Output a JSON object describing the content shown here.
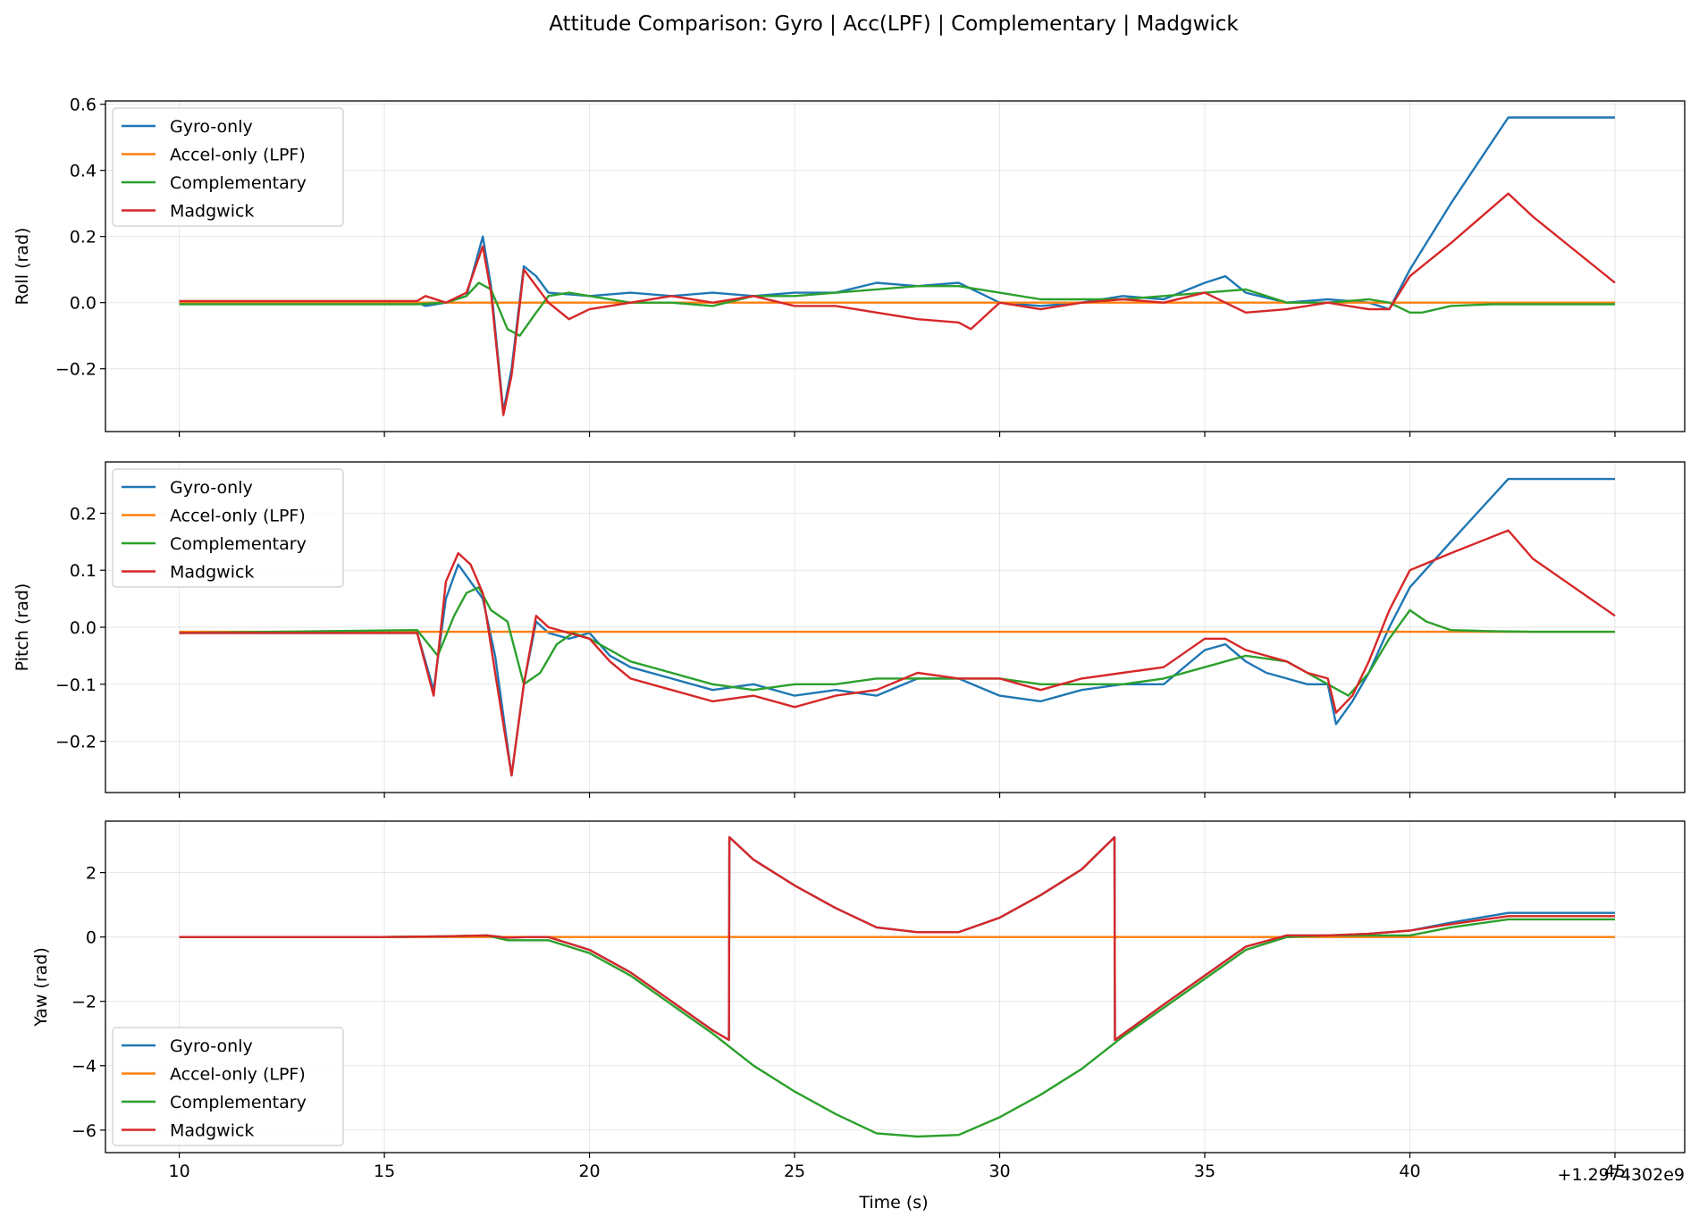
{
  "figure": {
    "title": "Attitude Comparison: Gyro | Acc(LPF) | Complementary | Madgwick",
    "xlabel": "Time (s)",
    "offset_label": "+1.2974302e9"
  },
  "chart_data": [
    {
      "type": "line",
      "ylabel": "Roll (rad)",
      "xlim": [
        8.2,
        46.7
      ],
      "ylim": [
        -0.39,
        0.61
      ],
      "xticks": [
        10,
        15,
        20,
        25,
        30,
        35,
        40,
        45
      ],
      "yticks": [
        -0.2,
        0.0,
        0.2,
        0.4,
        0.6
      ],
      "ytick_labels": [
        "−0.2",
        "0.0",
        "0.2",
        "0.4",
        "0.6"
      ],
      "grid": true,
      "legend": "upper left",
      "series": [
        {
          "name": "Gyro-only",
          "color": "#1f77b4",
          "x": [
            10,
            15.8,
            16,
            16.5,
            17,
            17.4,
            17.6,
            17.9,
            18.1,
            18.4,
            18.7,
            19,
            20,
            21,
            22,
            23,
            24,
            25,
            26,
            27,
            28,
            29,
            29.5,
            30,
            31,
            32,
            33,
            34,
            35,
            35.5,
            36,
            37,
            38,
            39,
            39.5,
            40,
            41,
            42.4,
            43,
            44,
            45
          ],
          "y": [
            0.0,
            0.0,
            -0.01,
            0.0,
            0.02,
            0.2,
            0.05,
            -0.33,
            -0.2,
            0.11,
            0.08,
            0.03,
            0.02,
            0.03,
            0.02,
            0.03,
            0.02,
            0.03,
            0.03,
            0.06,
            0.05,
            0.06,
            0.03,
            0.0,
            -0.01,
            0.0,
            0.02,
            0.01,
            0.06,
            0.08,
            0.03,
            0.0,
            0.01,
            0.0,
            -0.02,
            0.1,
            0.3,
            0.56,
            0.56,
            0.56,
            0.56
          ]
        },
        {
          "name": "Accel-only (LPF)",
          "color": "#ff7f0e",
          "x": [
            10,
            15,
            20,
            25,
            30,
            35,
            40,
            45
          ],
          "y": [
            0.0,
            0.0,
            0.0,
            0.0,
            0.0,
            0.0,
            0.0,
            0.0
          ]
        },
        {
          "name": "Complementary",
          "color": "#2ca02c",
          "x": [
            10,
            15.8,
            16.5,
            17,
            17.3,
            17.6,
            18,
            18.3,
            18.7,
            19,
            19.5,
            20,
            21,
            22,
            23,
            24,
            25,
            26,
            27,
            28,
            29,
            30,
            31,
            32,
            33,
            34,
            35,
            36,
            37,
            38,
            39,
            39.5,
            40,
            40.3,
            41,
            42,
            43,
            44,
            45
          ],
          "y": [
            -0.005,
            -0.005,
            0.0,
            0.02,
            0.06,
            0.04,
            -0.08,
            -0.1,
            -0.03,
            0.02,
            0.03,
            0.02,
            0.0,
            0.0,
            -0.01,
            0.02,
            0.02,
            0.03,
            0.04,
            0.05,
            0.05,
            0.03,
            0.01,
            0.01,
            0.01,
            0.02,
            0.03,
            0.04,
            0.0,
            0.0,
            0.01,
            0.0,
            -0.03,
            -0.03,
            -0.01,
            -0.005,
            -0.005,
            -0.005,
            -0.005
          ]
        },
        {
          "name": "Madgwick",
          "color": "#d62728",
          "x": [
            10,
            15.8,
            16,
            16.5,
            17,
            17.4,
            17.6,
            17.9,
            18.1,
            18.4,
            18.7,
            19,
            19.5,
            20,
            21,
            22,
            23,
            24,
            25,
            26,
            27,
            28,
            29,
            29.3,
            30,
            31,
            32,
            33,
            34,
            35,
            35.5,
            36,
            37,
            38,
            39,
            39.5,
            40,
            41,
            42.4,
            43,
            44,
            45
          ],
          "y": [
            0.005,
            0.005,
            0.02,
            0.0,
            0.03,
            0.17,
            0.03,
            -0.34,
            -0.22,
            0.1,
            0.05,
            0.0,
            -0.05,
            -0.02,
            0.0,
            0.02,
            0.0,
            0.02,
            -0.01,
            -0.01,
            -0.03,
            -0.05,
            -0.06,
            -0.08,
            0.0,
            -0.02,
            0.0,
            0.01,
            0.0,
            0.03,
            0.0,
            -0.03,
            -0.02,
            0.0,
            -0.02,
            -0.02,
            0.08,
            0.18,
            0.33,
            0.26,
            0.16,
            0.06
          ]
        }
      ]
    },
    {
      "type": "line",
      "ylabel": "Pitch (rad)",
      "xlim": [
        8.2,
        46.7
      ],
      "ylim": [
        -0.29,
        0.29
      ],
      "xticks": [
        10,
        15,
        20,
        25,
        30,
        35,
        40,
        45
      ],
      "yticks": [
        -0.2,
        -0.1,
        0.0,
        0.1,
        0.2
      ],
      "ytick_labels": [
        "−0.2",
        "−0.1",
        "0.0",
        "0.1",
        "0.2"
      ],
      "grid": true,
      "legend": "upper left",
      "series": [
        {
          "name": "Gyro-only",
          "color": "#1f77b4",
          "x": [
            10,
            15.8,
            16.2,
            16.5,
            16.8,
            17.1,
            17.4,
            17.7,
            18.1,
            18.4,
            18.7,
            19,
            19.5,
            20,
            20.5,
            21,
            22,
            23,
            24,
            25,
            26,
            27,
            28,
            29,
            30,
            31,
            32,
            33,
            34,
            35,
            35.5,
            36,
            36.5,
            37,
            37.5,
            38,
            38.2,
            38.6,
            39,
            39.5,
            40,
            41,
            42.4,
            43,
            44,
            45
          ],
          "y": [
            -0.01,
            -0.01,
            -0.11,
            0.05,
            0.11,
            0.08,
            0.05,
            -0.05,
            -0.26,
            -0.1,
            0.01,
            -0.01,
            -0.02,
            -0.01,
            -0.05,
            -0.07,
            -0.09,
            -0.11,
            -0.1,
            -0.12,
            -0.11,
            -0.12,
            -0.09,
            -0.09,
            -0.12,
            -0.13,
            -0.11,
            -0.1,
            -0.1,
            -0.04,
            -0.03,
            -0.06,
            -0.08,
            -0.09,
            -0.1,
            -0.1,
            -0.17,
            -0.13,
            -0.08,
            0.0,
            0.07,
            0.15,
            0.26,
            0.26,
            0.26,
            0.26
          ]
        },
        {
          "name": "Accel-only (LPF)",
          "color": "#ff7f0e",
          "x": [
            10,
            15,
            20,
            25,
            30,
            35,
            40,
            45
          ],
          "y": [
            -0.008,
            -0.008,
            -0.008,
            -0.008,
            -0.008,
            -0.008,
            -0.008,
            -0.008
          ]
        },
        {
          "name": "Complementary",
          "color": "#2ca02c",
          "x": [
            10,
            15.8,
            16.3,
            16.7,
            17,
            17.3,
            17.6,
            18,
            18.4,
            18.8,
            19.2,
            19.6,
            20,
            20.5,
            21,
            22,
            23,
            24,
            25,
            26,
            27,
            28,
            29,
            30,
            31,
            32,
            33,
            34,
            35,
            36,
            37,
            38,
            38.5,
            39,
            39.5,
            40,
            40.4,
            41,
            42,
            43,
            44,
            45
          ],
          "y": [
            -0.01,
            -0.005,
            -0.05,
            0.02,
            0.06,
            0.07,
            0.03,
            0.01,
            -0.1,
            -0.08,
            -0.03,
            -0.01,
            -0.02,
            -0.04,
            -0.06,
            -0.08,
            -0.1,
            -0.11,
            -0.1,
            -0.1,
            -0.09,
            -0.09,
            -0.09,
            -0.09,
            -0.1,
            -0.1,
            -0.1,
            -0.09,
            -0.07,
            -0.05,
            -0.06,
            -0.1,
            -0.12,
            -0.08,
            -0.02,
            0.03,
            0.01,
            -0.005,
            -0.007,
            -0.008,
            -0.008,
            -0.008
          ]
        },
        {
          "name": "Madgwick",
          "color": "#d62728",
          "x": [
            10,
            15.8,
            16.2,
            16.5,
            16.8,
            17.1,
            17.4,
            17.7,
            18.1,
            18.4,
            18.7,
            19,
            19.5,
            20,
            20.5,
            21,
            22,
            23,
            24,
            25,
            26,
            27,
            28,
            29,
            30,
            31,
            32,
            33,
            34,
            35,
            35.5,
            36,
            36.5,
            37,
            37.5,
            38,
            38.2,
            38.6,
            39,
            39.5,
            40,
            41,
            42.4,
            43,
            44,
            45
          ],
          "y": [
            -0.01,
            -0.01,
            -0.12,
            0.08,
            0.13,
            0.11,
            0.06,
            -0.08,
            -0.26,
            -0.1,
            0.02,
            0.0,
            -0.01,
            -0.02,
            -0.06,
            -0.09,
            -0.11,
            -0.13,
            -0.12,
            -0.14,
            -0.12,
            -0.11,
            -0.08,
            -0.09,
            -0.09,
            -0.11,
            -0.09,
            -0.08,
            -0.07,
            -0.02,
            -0.02,
            -0.04,
            -0.05,
            -0.06,
            -0.08,
            -0.09,
            -0.15,
            -0.12,
            -0.06,
            0.03,
            0.1,
            0.13,
            0.17,
            0.12,
            0.07,
            0.02
          ]
        }
      ]
    },
    {
      "type": "line",
      "ylabel": "Yaw (rad)",
      "xlim": [
        8.2,
        46.7
      ],
      "ylim": [
        -6.7,
        3.6
      ],
      "xticks": [
        10,
        15,
        20,
        25,
        30,
        35,
        40,
        45
      ],
      "xtick_labels": [
        "10",
        "15",
        "20",
        "25",
        "30",
        "35",
        "40",
        "45"
      ],
      "yticks": [
        -6,
        -4,
        -2,
        0,
        2
      ],
      "ytick_labels": [
        "−6",
        "−4",
        "−2",
        "0",
        "2"
      ],
      "grid": true,
      "legend": "lower left",
      "series": [
        {
          "name": "Gyro-only",
          "color": "#1f77b4",
          "x": [
            10,
            15,
            16.5,
            17.5,
            18,
            18.5,
            19,
            20,
            21,
            22,
            23,
            23.4,
            23.41,
            24,
            25,
            26,
            27,
            28,
            29,
            30,
            31,
            32,
            32.8,
            32.81,
            34,
            35,
            36,
            37,
            38,
            39,
            40,
            41,
            42.4,
            43,
            44,
            45
          ],
          "y": [
            0,
            0,
            0.02,
            0.05,
            -0.02,
            0.0,
            0.0,
            -0.4,
            -1.1,
            -2.0,
            -2.9,
            -3.2,
            3.1,
            2.4,
            1.6,
            0.9,
            0.3,
            0.15,
            0.15,
            0.6,
            1.3,
            2.1,
            3.1,
            -3.2,
            -2.1,
            -1.2,
            -0.3,
            0.05,
            0.05,
            0.1,
            0.2,
            0.45,
            0.75,
            0.75,
            0.75,
            0.75
          ]
        },
        {
          "name": "Accel-only (LPF)",
          "color": "#ff7f0e",
          "x": [
            10,
            15,
            20,
            25,
            30,
            35,
            40,
            45
          ],
          "y": [
            0,
            0,
            0,
            0,
            0,
            0,
            0,
            0
          ]
        },
        {
          "name": "Complementary",
          "color": "#2ca02c",
          "x": [
            10,
            15,
            16.5,
            17.5,
            18,
            18.5,
            19,
            20,
            21,
            22,
            23,
            24,
            25,
            26,
            27,
            28,
            29,
            30,
            31,
            32,
            33,
            34,
            35,
            36,
            37,
            38,
            39,
            40,
            41,
            42.4,
            43,
            44,
            45
          ],
          "y": [
            0,
            0,
            0.02,
            0.05,
            -0.1,
            -0.1,
            -0.1,
            -0.5,
            -1.2,
            -2.1,
            -3.0,
            -4.0,
            -4.8,
            -5.5,
            -6.1,
            -6.2,
            -6.15,
            -5.6,
            -4.9,
            -4.1,
            -3.1,
            -2.2,
            -1.3,
            -0.4,
            0.0,
            0.05,
            0.05,
            0.05,
            0.3,
            0.55,
            0.55,
            0.55,
            0.55
          ]
        },
        {
          "name": "Madgwick",
          "color": "#d62728",
          "x": [
            10,
            15,
            16.5,
            17.5,
            18,
            18.5,
            19,
            20,
            21,
            22,
            23,
            23.4,
            23.41,
            24,
            25,
            26,
            27,
            28,
            29,
            30,
            31,
            32,
            32.8,
            32.81,
            34,
            35,
            36,
            37,
            38,
            39,
            40,
            41,
            42.4,
            43,
            44,
            45
          ],
          "y": [
            0,
            0,
            0.02,
            0.05,
            -0.02,
            0.0,
            0.0,
            -0.4,
            -1.1,
            -2.0,
            -2.9,
            -3.2,
            3.1,
            2.4,
            1.6,
            0.9,
            0.3,
            0.15,
            0.15,
            0.6,
            1.3,
            2.1,
            3.1,
            -3.2,
            -2.1,
            -1.2,
            -0.3,
            0.05,
            0.05,
            0.1,
            0.2,
            0.4,
            0.65,
            0.65,
            0.65,
            0.65
          ]
        }
      ]
    }
  ]
}
